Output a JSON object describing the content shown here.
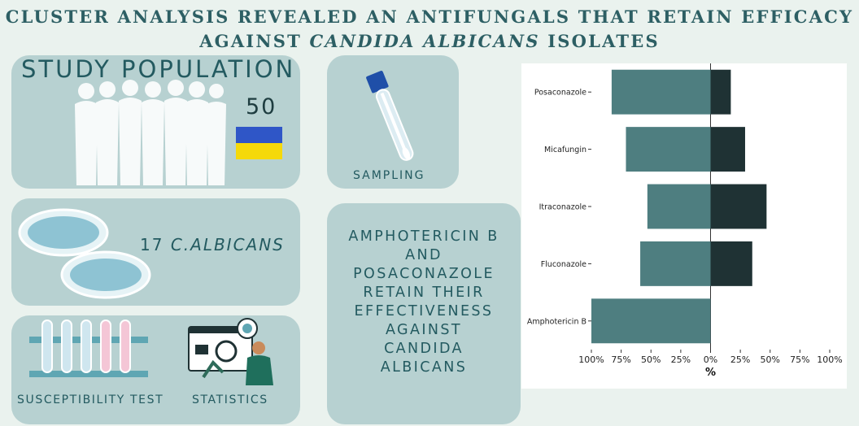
{
  "title": {
    "line1": "CLUSTER ANALYSIS REVEALED AN ANTIFUNGALS THAT RETAIN EFFICACY",
    "line2_prefix": "AGAINST",
    "line2_italic": "CANDIDA ALBICANS",
    "line2_suffix": "ISOLATES"
  },
  "study_population": {
    "label": "STUDY POPULATION",
    "count": "50",
    "flag_colors": [
      "#2f56c7",
      "#f5d90a"
    ]
  },
  "sampling": {
    "label": "SAMPLING"
  },
  "isolates": {
    "count_prefix": "17",
    "species": "C.ALBICANS"
  },
  "methods": {
    "susceptibility_label": "SUSCEPTIBILITY TEST",
    "statistics_label": "STATISTICS"
  },
  "conclusion": {
    "lines": [
      "AMPHOTERICIN B",
      "AND",
      "POSACONAZOLE",
      "RETAIN THEIR",
      "EFFECTIVENESS",
      "AGAINST",
      "CANDIDA",
      "ALBICANS"
    ]
  },
  "colors": {
    "panel": "#b7d1d1",
    "text_accent": "#2d5f64",
    "bar_left": "#4e7e80",
    "bar_right": "#1f3234"
  },
  "chart_data": {
    "type": "bar",
    "orientation": "horizontal-diverging",
    "categories": [
      "Posaconazole",
      "Micafungin",
      "Itraconazole",
      "Fluconazole",
      "Amphotericin B"
    ],
    "series": [
      {
        "values": [
          83,
          71,
          53,
          59,
          100
        ]
      },
      {
        "values": [
          17,
          29,
          47,
          35,
          0
        ]
      }
    ],
    "xlabel": "%",
    "xticks": [
      "100%",
      "75%",
      "50%",
      "25%",
      "0%",
      "25%",
      "50%",
      "75%",
      "100%"
    ],
    "xlim": [
      -100,
      100
    ],
    "grid": false
  }
}
